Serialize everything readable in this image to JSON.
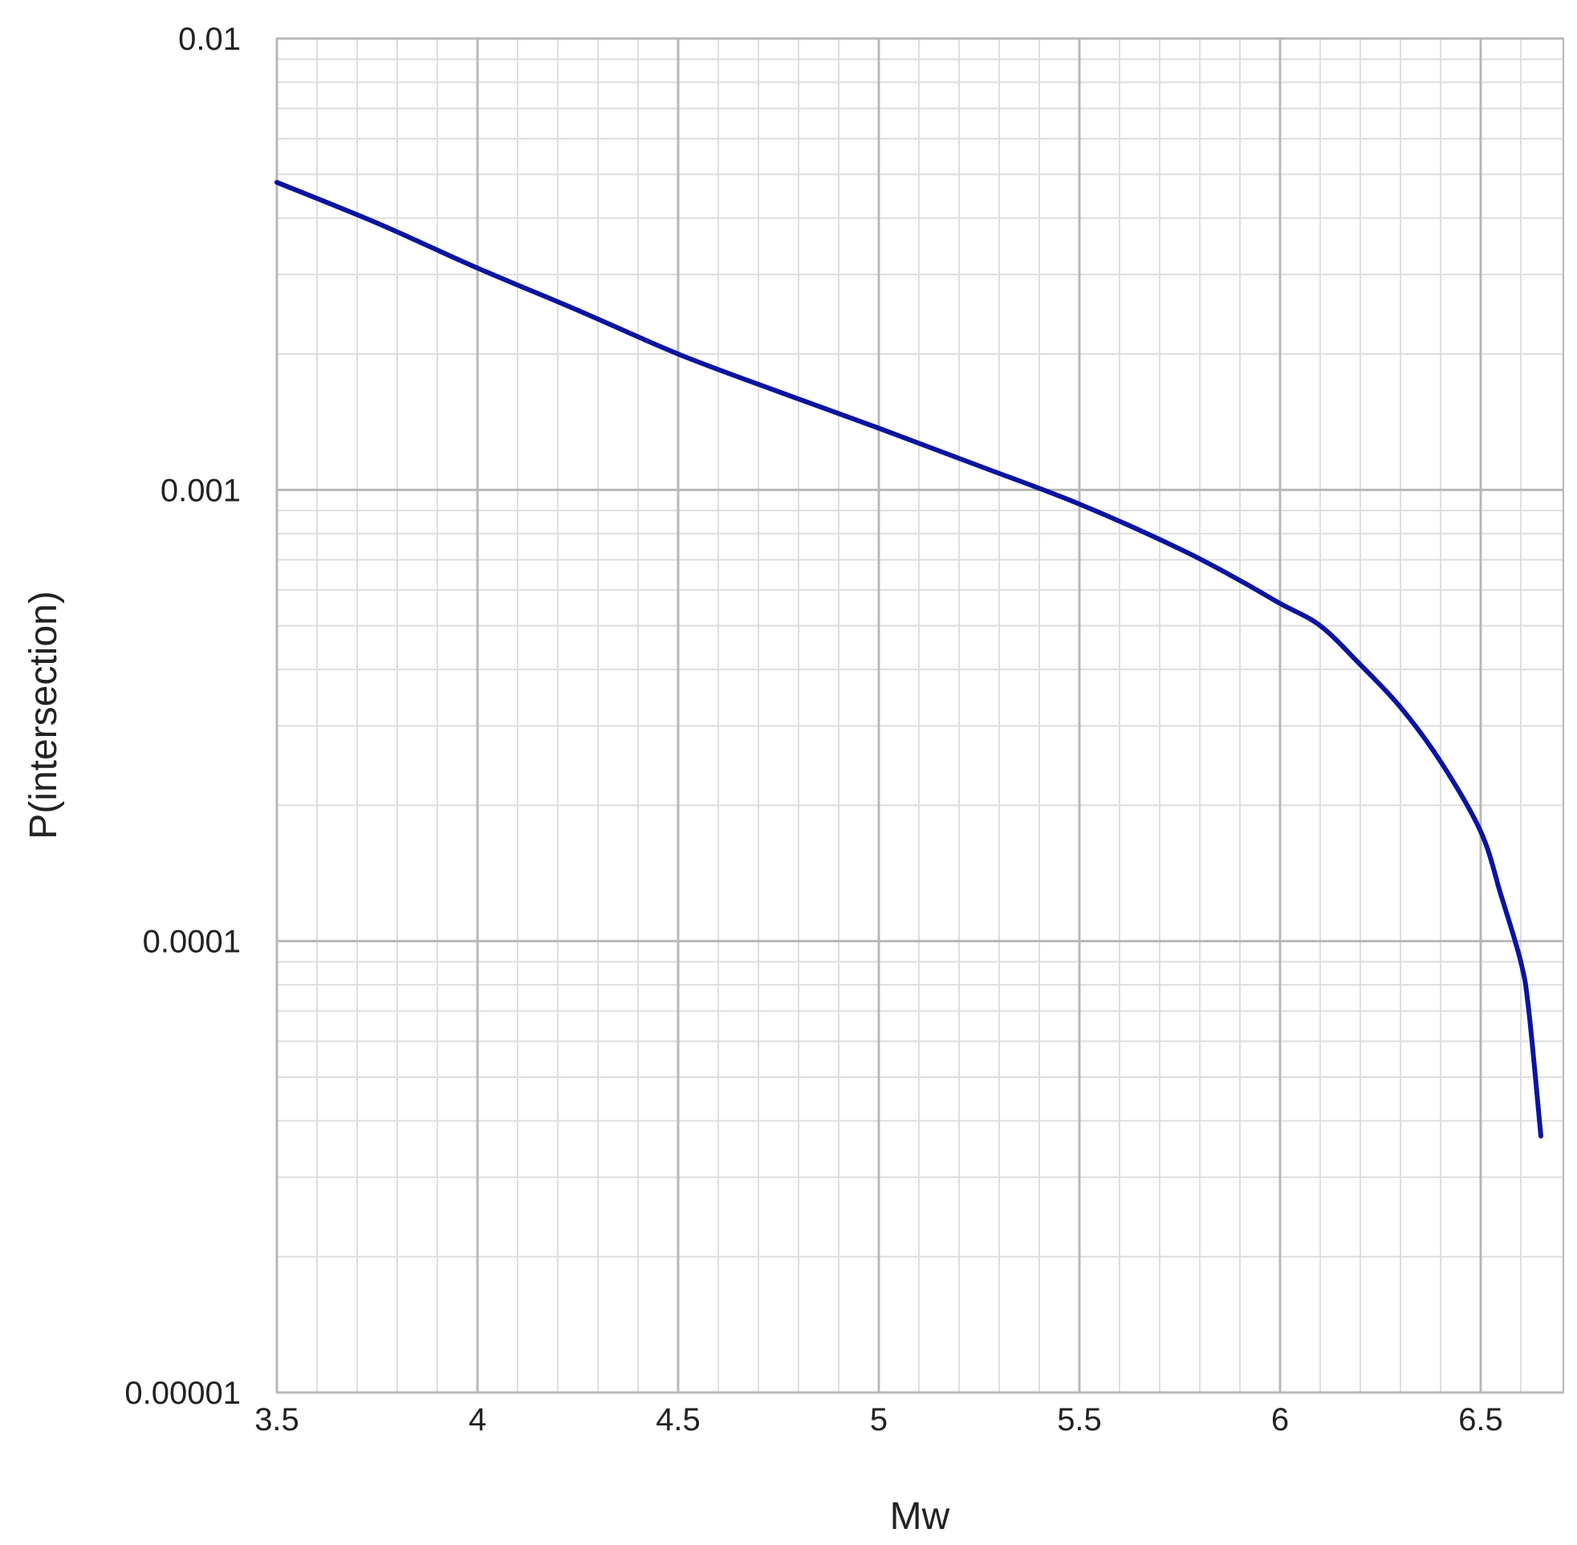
{
  "chart_data": {
    "type": "line",
    "title": "",
    "xlabel": "Mw",
    "ylabel": "P(intersection)",
    "xlim": [
      3.5,
      6.65
    ],
    "ylim": [
      1e-05,
      0.01
    ],
    "yscale": "log",
    "grid": true,
    "x_ticks": [
      "3.5",
      "4",
      "4.5",
      "5",
      "5.5",
      "6",
      "6.5"
    ],
    "y_ticks": [
      "0.01",
      "0.001",
      "0.0001",
      "0.00001"
    ],
    "series": [
      {
        "color": "#0a14a0",
        "x": [
          3.5,
          3.75,
          4.0,
          4.25,
          4.5,
          4.75,
          5.0,
          5.25,
          5.5,
          5.75,
          5.9,
          6.0,
          6.1,
          6.2,
          6.3,
          6.4,
          6.5,
          6.55,
          6.6,
          6.62,
          6.65
        ],
        "y": [
          0.0048,
          0.0039,
          0.0031,
          0.0025,
          0.002,
          0.00165,
          0.00137,
          0.00113,
          0.00093,
          0.00074,
          0.00063,
          0.00056,
          0.0005,
          0.00041,
          0.00033,
          0.00025,
          0.000175,
          0.000127,
          9e-05,
          7e-05,
          3.7e-05
        ]
      }
    ]
  }
}
